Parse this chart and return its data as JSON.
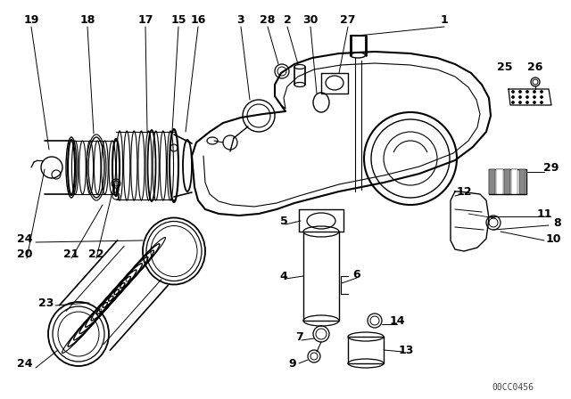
{
  "diagram_code": "00CC0456",
  "bg_color": "#ffffff",
  "lc": "#000000",
  "fig_width": 6.4,
  "fig_height": 4.48,
  "dpi": 100
}
